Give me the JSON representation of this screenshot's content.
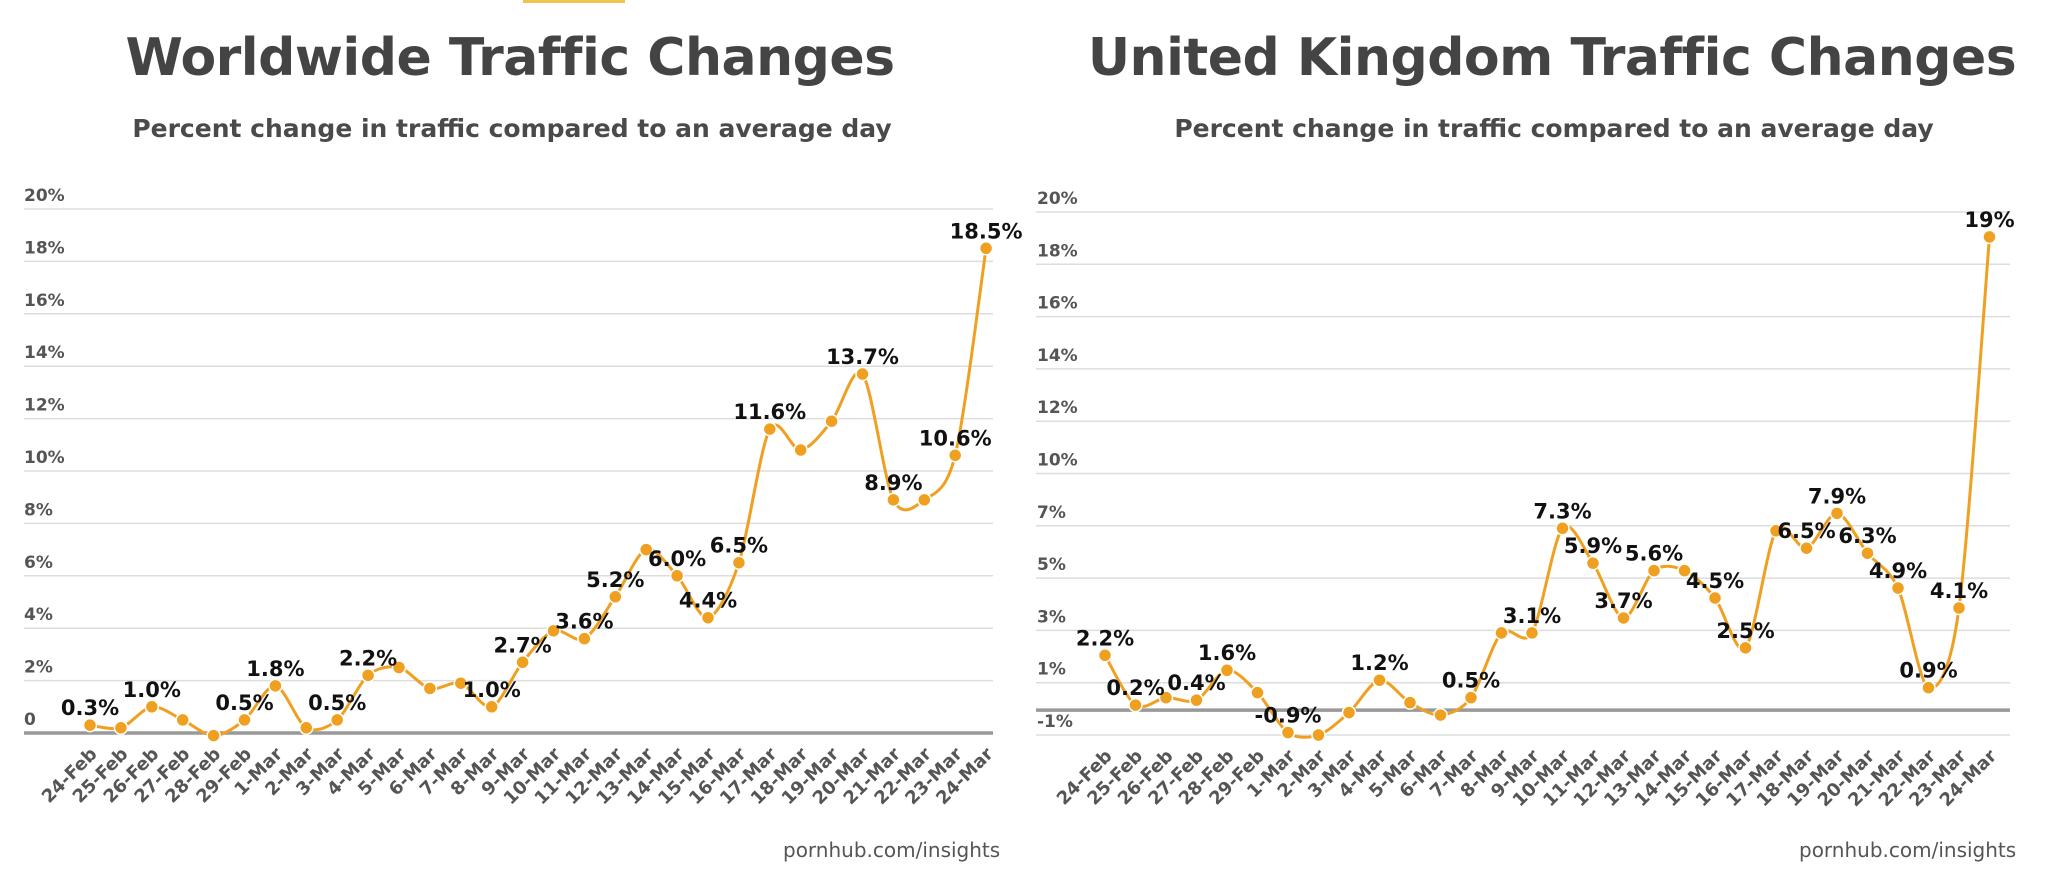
{
  "accent_color": "#f2c14e",
  "line_color": "#f0a020",
  "grid_color": "#dddddd",
  "axis_color": "#999999",
  "chart_data": [
    {
      "type": "line",
      "title": "Worldwide Traffic Changes",
      "subtitle": "Percent change in traffic compared to an average day",
      "source": "pornhub.com/insights",
      "xlabel": "",
      "ylabel": "",
      "ylim": [
        0,
        20
      ],
      "yticks": [
        {
          "value": 20,
          "label": "20%"
        },
        {
          "value": 18,
          "label": "18%"
        },
        {
          "value": 16,
          "label": "16%"
        },
        {
          "value": 14,
          "label": "14%"
        },
        {
          "value": 12,
          "label": "12%"
        },
        {
          "value": 10,
          "label": "10%"
        },
        {
          "value": 8,
          "label": "8%"
        },
        {
          "value": 6,
          "label": "6%"
        },
        {
          "value": 4,
          "label": "4%"
        },
        {
          "value": 2,
          "label": "2%"
        },
        {
          "value": 0,
          "label": "0"
        }
      ],
      "grid": true,
      "legend": "none",
      "categories": [
        "24-Feb",
        "25-Feb",
        "26-Feb",
        "27-Feb",
        "28-Feb",
        "29-Feb",
        "1-Mar",
        "2-Mar",
        "3-Mar",
        "4-Mar",
        "5-Mar",
        "6-Mar",
        "7-Mar",
        "8-Mar",
        "9-Mar",
        "10-Mar",
        "11-Mar",
        "12-Mar",
        "13-Mar",
        "14-Mar",
        "15-Mar",
        "16-Mar",
        "17-Mar",
        "18-Mar",
        "19-Mar",
        "20-Mar",
        "21-Mar",
        "22-Mar",
        "23-Mar",
        "24-Mar"
      ],
      "series": [
        {
          "name": "Worldwide",
          "values": [
            0.3,
            0.2,
            1.0,
            0.5,
            -0.1,
            0.5,
            1.8,
            0.2,
            0.5,
            2.2,
            2.5,
            1.7,
            1.9,
            1.0,
            2.7,
            3.9,
            3.6,
            5.2,
            7.0,
            6.0,
            4.4,
            6.5,
            11.6,
            10.8,
            11.9,
            13.7,
            8.9,
            8.9,
            10.6,
            18.5
          ]
        }
      ],
      "annotations": [
        {
          "index": 0,
          "text": "0.3%"
        },
        {
          "index": 2,
          "text": "1.0%"
        },
        {
          "index": 5,
          "text": "0.5%"
        },
        {
          "index": 6,
          "text": "1.8%"
        },
        {
          "index": 8,
          "text": "0.5%"
        },
        {
          "index": 9,
          "text": "2.2%"
        },
        {
          "index": 13,
          "text": "1.0%"
        },
        {
          "index": 14,
          "text": "2.7%"
        },
        {
          "index": 16,
          "text": "3.6%"
        },
        {
          "index": 17,
          "text": "5.2%"
        },
        {
          "index": 19,
          "text": "6.0%"
        },
        {
          "index": 20,
          "text": "4.4%"
        },
        {
          "index": 21,
          "text": "6.5%"
        },
        {
          "index": 22,
          "text": "11.6%"
        },
        {
          "index": 25,
          "text": "13.7%"
        },
        {
          "index": 26,
          "text": "8.9%"
        },
        {
          "index": 28,
          "text": "10.6%"
        },
        {
          "index": 29,
          "text": "18.5%"
        }
      ]
    },
    {
      "type": "line",
      "title": "United Kingdom Traffic Changes",
      "subtitle": "Percent change in traffic compared to an average day",
      "source": "pornhub.com/insights",
      "xlabel": "",
      "ylabel": "",
      "ylim": [
        -1,
        20
      ],
      "yticks": [
        {
          "value": 20,
          "label": "20%"
        },
        {
          "value": 17.9,
          "label": "18%"
        },
        {
          "value": 15.8,
          "label": "16%"
        },
        {
          "value": 13.7,
          "label": "14%"
        },
        {
          "value": 11.6,
          "label": "12%"
        },
        {
          "value": 9.5,
          "label": "10%"
        },
        {
          "value": 7.4,
          "label": "7%"
        },
        {
          "value": 5.3,
          "label": "5%"
        },
        {
          "value": 3.2,
          "label": "3%"
        },
        {
          "value": 1.1,
          "label": "1%"
        },
        {
          "value": -1,
          "label": "-1%"
        }
      ],
      "grid": true,
      "legend": "none",
      "categories": [
        "24-Feb",
        "25-Feb",
        "26-Feb",
        "27-Feb",
        "28-Feb",
        "29-Feb",
        "1-Mar",
        "2-Mar",
        "3-Mar",
        "4-Mar",
        "5-Mar",
        "6-Mar",
        "7-Mar",
        "8-Mar",
        "9-Mar",
        "10-Mar",
        "11-Mar",
        "12-Mar",
        "13-Mar",
        "14-Mar",
        "15-Mar",
        "16-Mar",
        "17-Mar",
        "18-Mar",
        "19-Mar",
        "20-Mar",
        "21-Mar",
        "22-Mar",
        "23-Mar",
        "24-Mar"
      ],
      "series": [
        {
          "name": "United Kingdom",
          "values": [
            2.2,
            0.2,
            0.5,
            0.4,
            1.6,
            0.7,
            -0.9,
            -1.0,
            -0.1,
            1.2,
            0.3,
            -0.2,
            0.5,
            3.1,
            3.1,
            7.3,
            5.9,
            3.7,
            5.6,
            5.6,
            4.5,
            2.5,
            7.2,
            6.5,
            7.9,
            6.3,
            4.9,
            0.9,
            4.1,
            19.0
          ]
        }
      ],
      "annotations": [
        {
          "index": 0,
          "text": "2.2%"
        },
        {
          "index": 1,
          "text": "0.2%"
        },
        {
          "index": 3,
          "text": "0.4%"
        },
        {
          "index": 4,
          "text": "1.6%"
        },
        {
          "index": 6,
          "text": "-0.9%"
        },
        {
          "index": 9,
          "text": "1.2%"
        },
        {
          "index": 12,
          "text": "0.5%"
        },
        {
          "index": 14,
          "text": "3.1%"
        },
        {
          "index": 15,
          "text": "7.3%"
        },
        {
          "index": 16,
          "text": "5.9%"
        },
        {
          "index": 17,
          "text": "3.7%"
        },
        {
          "index": 18,
          "text": "5.6%"
        },
        {
          "index": 20,
          "text": "4.5%"
        },
        {
          "index": 21,
          "text": "2.5%"
        },
        {
          "index": 23,
          "text": "6.5%"
        },
        {
          "index": 24,
          "text": "7.9%"
        },
        {
          "index": 25,
          "text": "6.3%"
        },
        {
          "index": 26,
          "text": "4.9%"
        },
        {
          "index": 27,
          "text": "0.9%"
        },
        {
          "index": 28,
          "text": "4.1%"
        },
        {
          "index": 29,
          "text": "19%"
        }
      ]
    }
  ]
}
